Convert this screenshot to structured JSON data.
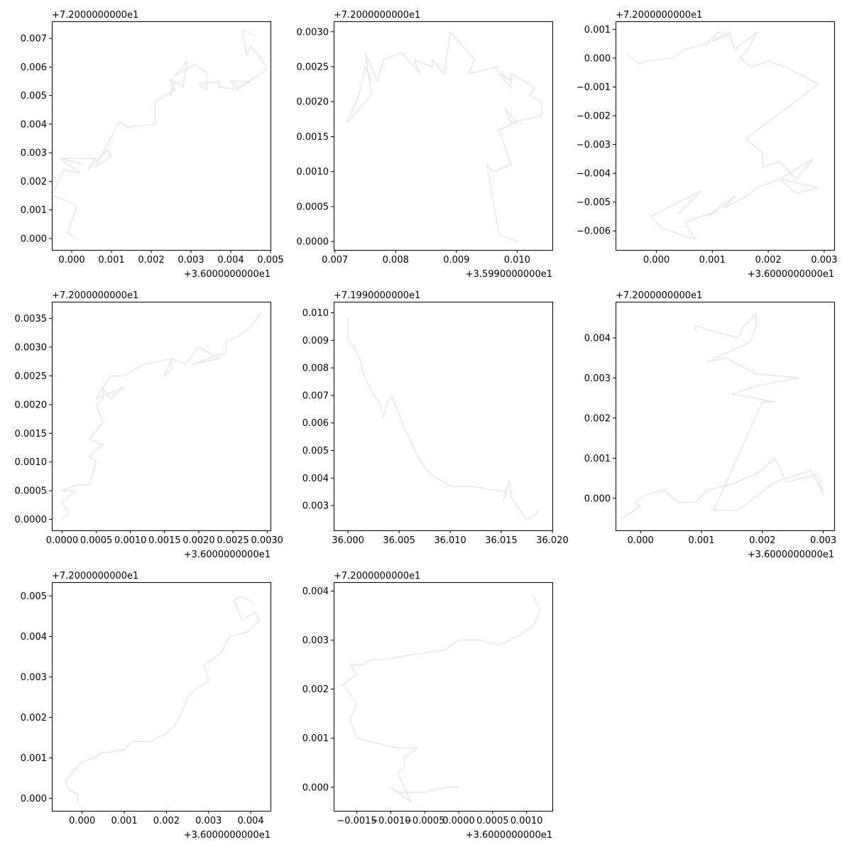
{
  "colors": {
    "track": "#e6e6fa",
    "axis": "#000000",
    "background": "#ffffff"
  },
  "chart_data": [
    {
      "type": "line",
      "title": "",
      "xlabel": "",
      "ylabel": "",
      "xlim": [
        -0.0005,
        0.005
      ],
      "ylim": [
        -0.0004,
        0.0076
      ],
      "x_offset_label": "+3.6000000000e1",
      "y_offset_label": "+7.2000000000e1",
      "x_ticks": [
        0.0,
        0.001,
        0.002,
        0.003,
        0.004,
        0.005
      ],
      "x_tick_labels": [
        "0.000",
        "0.001",
        "0.002",
        "0.003",
        "0.004",
        "0.005"
      ],
      "y_ticks": [
        0.0,
        0.001,
        0.002,
        0.003,
        0.004,
        0.005,
        0.006,
        0.007
      ],
      "y_tick_labels": [
        "0.000",
        "0.001",
        "0.002",
        "0.003",
        "0.004",
        "0.005",
        "0.006",
        "0.007"
      ],
      "series": [
        {
          "x": [
            0.0001,
            -0.0001,
            0.0001,
            0.0001,
            -0.0005,
            -0.0003,
            -0.0002,
            0.0002,
            -0.0003,
            0.0003,
            -0.0003,
            0.0006,
            0.0004,
            0.0009,
            0.001,
            0.0006,
            0.0012,
            0.0014,
            0.0021,
            0.0021,
            0.0026,
            0.0025,
            0.0025,
            0.0026,
            0.0028,
            0.0029,
            0.0026,
            0.0031,
            0.0034,
            0.0034,
            0.0032,
            0.0037,
            0.0037,
            0.0042,
            0.004,
            0.0045,
            0.0041,
            0.0048,
            0.0049,
            0.0047,
            0.0045,
            0.0044,
            0.0043,
            0.0046
          ],
          "y": [
            0.0,
            0.0002,
            0.001,
            0.0012,
            0.0015,
            0.0021,
            0.0024,
            0.0023,
            0.0028,
            0.0026,
            0.0028,
            0.0028,
            0.0024,
            0.0031,
            0.0029,
            0.0025,
            0.0041,
            0.0039,
            0.004,
            0.0048,
            0.0052,
            0.0056,
            0.005,
            0.0055,
            0.0053,
            0.0062,
            0.0057,
            0.0061,
            0.0058,
            0.0052,
            0.0054,
            0.0055,
            0.0053,
            0.0052,
            0.0055,
            0.0055,
            0.0052,
            0.0058,
            0.006,
            0.0064,
            0.0067,
            0.0064,
            0.0073,
            0.0071
          ]
        }
      ]
    },
    {
      "type": "line",
      "title": "",
      "xlabel": "",
      "ylabel": "",
      "xlim": [
        0.00698,
        0.01058
      ],
      "ylim": [
        -0.00012,
        0.00315
      ],
      "x_offset_label": "+3.5990000000e1",
      "y_offset_label": "+7.2000000000e1",
      "x_ticks": [
        0.007,
        0.008,
        0.009,
        0.01
      ],
      "x_tick_labels": [
        "0.007",
        "0.008",
        "0.009",
        "0.010"
      ],
      "y_ticks": [
        0.0,
        0.0005,
        0.001,
        0.0015,
        0.002,
        0.0025,
        0.003
      ],
      "y_tick_labels": [
        "0.0000",
        "0.0005",
        "0.0010",
        "0.0015",
        "0.0020",
        "0.0025",
        "0.0030"
      ],
      "series": [
        {
          "x": [
            0.01,
            0.0097,
            0.0095,
            0.0096,
            0.0099,
            0.0097,
            0.01,
            0.0098,
            0.0099,
            0.0104,
            0.0104,
            0.0102,
            0.0103,
            0.0101,
            0.0099,
            0.0099,
            0.0097,
            0.0099,
            0.0096,
            0.0097,
            0.0092,
            0.0093,
            0.0089,
            0.0088,
            0.0086,
            0.0086,
            0.0083,
            0.0084,
            0.0081,
            0.0078,
            0.0077,
            0.0075,
            0.0076,
            0.0074,
            0.0072,
            0.0074,
            0.0075,
            0.0076
          ],
          "y": [
            0.0,
            0.0001,
            0.0011,
            0.001,
            0.0011,
            0.0016,
            0.0017,
            0.0019,
            0.0017,
            0.0018,
            0.002,
            0.0021,
            0.0022,
            0.0023,
            0.0024,
            0.0022,
            0.0024,
            0.0023,
            0.0025,
            0.0025,
            0.0024,
            0.0026,
            0.003,
            0.0024,
            0.0026,
            0.0025,
            0.0026,
            0.0024,
            0.0027,
            0.0026,
            0.0023,
            0.0027,
            0.0021,
            0.0019,
            0.0017,
            0.0021,
            0.0025,
            0.0023
          ]
        }
      ]
    },
    {
      "type": "line",
      "title": "",
      "xlabel": "",
      "ylabel": "",
      "xlim": [
        -0.00073,
        0.00318
      ],
      "ylim": [
        -0.00666,
        0.00128
      ],
      "x_offset_label": "+3.6000000000e1",
      "y_offset_label": "+7.2000000000e1",
      "x_ticks": [
        0.0,
        0.001,
        0.002,
        0.003
      ],
      "x_tick_labels": [
        "0.000",
        "0.001",
        "0.002",
        "0.003"
      ],
      "y_ticks": [
        -0.006,
        -0.005,
        -0.004,
        -0.003,
        -0.002,
        -0.001,
        0.0,
        0.001
      ],
      "y_tick_labels": [
        "−0.006",
        "−0.005",
        "−0.004",
        "−0.003",
        "−0.002",
        "−0.001",
        "0.000",
        "0.001"
      ],
      "series": [
        {
          "x": [
            -0.0005,
            -0.0003,
            -0.0002,
            0.0003,
            0.0005,
            0.0009,
            0.0011,
            0.0013,
            0.001,
            0.0013,
            0.0014,
            0.0018,
            0.0016,
            0.0015,
            0.0017,
            0.002,
            0.0023,
            0.0029,
            0.0016,
            0.0019,
            0.0019,
            0.0022,
            0.0025,
            0.0028,
            0.0022,
            0.0029,
            0.0025,
            0.0022,
            0.0018,
            0.0016,
            0.0012,
            0.0014,
            0.0009,
            0.0011,
            0.0005,
            0.0007,
            0.0001,
            -0.0001,
            0.0003,
            0.0008,
            0.0004
          ],
          "y": [
            0.0001,
            -0.0002,
            -0.0001,
            0.0,
            0.0003,
            0.0005,
            0.0009,
            0.0008,
            0.0006,
            0.0009,
            0.0003,
            0.0009,
            0.0002,
            0.0,
            -0.0003,
            -0.0001,
            -0.0003,
            -0.0009,
            -0.0028,
            -0.0033,
            -0.0038,
            -0.0036,
            -0.0042,
            -0.0035,
            -0.0042,
            -0.0045,
            -0.0047,
            -0.0042,
            -0.0045,
            -0.0048,
            -0.0052,
            -0.0048,
            -0.0055,
            -0.0053,
            -0.0057,
            -0.0063,
            -0.0059,
            -0.0055,
            -0.0051,
            -0.0046,
            -0.0054
          ]
        }
      ]
    },
    {
      "type": "line",
      "title": "",
      "xlabel": "",
      "ylabel": "",
      "xlim": [
        -0.00015,
        0.00305
      ],
      "ylim": [
        -0.00019,
        0.00379
      ],
      "x_offset_label": "+3.6000000000e1",
      "y_offset_label": "+7.2000000000e1",
      "x_ticks": [
        0.0,
        0.0005,
        0.001,
        0.0015,
        0.002,
        0.0025,
        0.003
      ],
      "x_tick_labels": [
        "0.0000",
        "0.0005",
        "0.0010",
        "0.0015",
        "0.0020",
        "0.0025",
        "0.0030"
      ],
      "y_ticks": [
        0.0,
        0.0005,
        0.001,
        0.0015,
        0.002,
        0.0025,
        0.003,
        0.0035
      ],
      "y_tick_labels": [
        "0.0000",
        "0.0005",
        "0.0010",
        "0.0015",
        "0.0020",
        "0.0025",
        "0.0030",
        "0.0035"
      ],
      "series": [
        {
          "x": [
            0.0,
            0.0001,
            0.0,
            0.0002,
            0.0,
            0.0002,
            0.0004,
            0.0005,
            0.0004,
            0.0006,
            0.0004,
            0.0006,
            0.0005,
            0.0006,
            0.0006,
            0.0007,
            0.0009,
            0.0005,
            0.0007,
            0.0009,
            0.0012,
            0.0016,
            0.0015,
            0.0016,
            0.0016,
            0.0018,
            0.002,
            0.0023,
            0.0019,
            0.0024,
            0.0024,
            0.0026,
            0.0028,
            0.0029
          ],
          "y": [
            0.0,
            0.0001,
            0.0003,
            0.0005,
            0.0005,
            0.0006,
            0.0006,
            0.001,
            0.0011,
            0.0013,
            0.0014,
            0.0017,
            0.002,
            0.0021,
            0.0023,
            0.0021,
            0.0023,
            0.0021,
            0.0025,
            0.0025,
            0.0027,
            0.0028,
            0.0025,
            0.0026,
            0.0028,
            0.0027,
            0.003,
            0.0028,
            0.0027,
            0.0029,
            0.0031,
            0.0032,
            0.0034,
            0.0036
          ]
        }
      ]
    },
    {
      "type": "line",
      "title": "",
      "xlabel": "",
      "ylabel": "",
      "xlim": [
        35.9986,
        36.02
      ],
      "ylim": [
        0.0021,
        0.0104
      ],
      "x_offset_label": "",
      "y_offset_label": "+7.1990000000e1",
      "x_ticks": [
        36.0,
        36.005,
        36.01,
        36.015,
        36.02
      ],
      "x_tick_labels": [
        "36.000",
        "36.005",
        "36.010",
        "36.015",
        "36.020"
      ],
      "y_ticks": [
        0.003,
        0.004,
        0.005,
        0.006,
        0.007,
        0.008,
        0.009,
        0.01
      ],
      "y_tick_labels": [
        "0.003",
        "0.004",
        "0.005",
        "0.006",
        "0.007",
        "0.008",
        "0.009",
        "0.010"
      ],
      "series": [
        {
          "x": [
            36.0,
            36.0,
            36.0005,
            36.0012,
            36.0015,
            36.0025,
            36.003,
            36.0035,
            36.0038,
            36.0043,
            36.0045,
            36.0055,
            36.006,
            36.0065,
            36.0075,
            36.0082,
            36.0092,
            36.01,
            36.012,
            36.0155,
            36.0152,
            36.0158,
            36.016,
            36.0165,
            36.0175,
            36.0185,
            36.0185
          ],
          "y": [
            0.0098,
            0.009,
            0.0088,
            0.0083,
            0.0078,
            0.007,
            0.0068,
            0.0062,
            0.0067,
            0.007,
            0.0068,
            0.0058,
            0.0055,
            0.005,
            0.0044,
            0.0041,
            0.0039,
            0.0037,
            0.0037,
            0.0035,
            0.0032,
            0.0039,
            0.0033,
            0.003,
            0.0025,
            0.0027,
            0.0028
          ]
        }
      ]
    },
    {
      "type": "line",
      "title": "",
      "xlabel": "",
      "ylabel": "",
      "xlim": [
        -0.00041,
        0.00318
      ],
      "ylim": [
        -0.0008,
        0.0049
      ],
      "x_offset_label": "+3.6000000000e1",
      "y_offset_label": "+7.2000000000e1",
      "x_ticks": [
        0.0,
        0.001,
        0.002,
        0.003
      ],
      "x_tick_labels": [
        "0.000",
        "0.001",
        "0.002",
        "0.003"
      ],
      "y_ticks": [
        0.0,
        0.001,
        0.002,
        0.003,
        0.004
      ],
      "y_tick_labels": [
        "0.000",
        "0.001",
        "0.002",
        "0.003",
        "0.004"
      ],
      "series": [
        {
          "x": [
            -0.0002,
            -0.0003,
            0.0,
            -0.0001,
            0.0001,
            0.0004,
            0.0006,
            0.0009,
            0.0011,
            0.0016,
            0.0014,
            0.0019,
            0.0022,
            0.0024,
            0.0029,
            0.003,
            0.0028,
            0.0022,
            0.0016,
            0.0012,
            0.002,
            0.0022,
            0.0015,
            0.0019,
            0.0026,
            0.0019,
            0.0014,
            0.0011,
            0.0018,
            0.0019,
            0.0019,
            0.0017,
            0.0016,
            0.0011,
            0.0009,
            0.0009
          ],
          "y": [
            -0.0004,
            -0.0005,
            -0.0002,
            -0.0001,
            0.0001,
            0.0002,
            -0.0001,
            -0.0001,
            0.0002,
            0.0004,
            0.0003,
            0.0006,
            0.001,
            0.0004,
            0.0006,
            0.0001,
            0.0007,
            0.0004,
            -0.0003,
            -0.0003,
            0.0024,
            0.0024,
            0.0026,
            0.0028,
            0.003,
            0.0031,
            0.0035,
            0.0034,
            0.0039,
            0.0043,
            0.0046,
            0.0043,
            0.004,
            0.0042,
            0.0043,
            0.0042
          ]
        }
      ]
    },
    {
      "type": "line",
      "title": "",
      "xlabel": "",
      "ylabel": "",
      "xlim": [
        -0.00072,
        0.00447
      ],
      "ylim": [
        -0.00031,
        0.00534
      ],
      "x_offset_label": "+3.6000000000e1",
      "y_offset_label": "+7.2000000000e1",
      "x_ticks": [
        0.0,
        0.001,
        0.002,
        0.003,
        0.004
      ],
      "x_tick_labels": [
        "0.000",
        "0.001",
        "0.002",
        "0.003",
        "0.004"
      ],
      "y_ticks": [
        0.0,
        0.001,
        0.002,
        0.003,
        0.004,
        0.005
      ],
      "y_tick_labels": [
        "0.000",
        "0.001",
        "0.002",
        "0.003",
        "0.004",
        "0.005"
      ],
      "series": [
        {
          "x": [
            -0.0001,
            -0.0001,
            -0.0003,
            -0.0004,
            -0.0002,
            0.0,
            0.0003,
            0.0004,
            0.001,
            0.0012,
            0.0016,
            0.0018,
            0.002,
            0.0022,
            0.0024,
            0.0025,
            0.0027,
            0.003,
            0.0029,
            0.0033,
            0.0035,
            0.0039,
            0.0042,
            0.0041,
            0.0038,
            0.0036,
            0.0038,
            0.0041
          ],
          "y": [
            -0.0001,
            0.0001,
            0.0002,
            0.0004,
            0.0007,
            0.0009,
            0.001,
            0.0011,
            0.0012,
            0.0014,
            0.0014,
            0.0015,
            0.0016,
            0.0018,
            0.0022,
            0.0025,
            0.0027,
            0.0029,
            0.0033,
            0.0036,
            0.004,
            0.0041,
            0.0044,
            0.0046,
            0.0044,
            0.0049,
            0.005,
            0.0048
          ]
        }
      ]
    },
    {
      "type": "line",
      "title": "",
      "xlabel": "",
      "ylabel": "",
      "xlim": [
        -0.00184,
        0.00138
      ],
      "ylim": [
        -0.00048,
        0.00418
      ],
      "x_offset_label": "+3.6000000000e1",
      "y_offset_label": "+7.2000000000e1",
      "x_ticks": [
        -0.0015,
        -0.001,
        -0.0005,
        0.0,
        0.0005,
        0.001
      ],
      "x_tick_labels": [
        "−0.0015",
        "−0.0010",
        "−0.0005",
        "0.0000",
        "0.0005",
        "0.0010"
      ],
      "y_ticks": [
        0.0,
        0.001,
        0.002,
        0.003,
        0.004
      ],
      "y_tick_labels": [
        "0.000",
        "0.001",
        "0.002",
        "0.003",
        "0.004"
      ],
      "series": [
        {
          "x": [
            0.0,
            -0.0002,
            -0.0005,
            -0.0009,
            -0.001,
            -0.0007,
            -0.0009,
            -0.0008,
            -0.0008,
            -0.0006,
            -0.0009,
            -0.0015,
            -0.0016,
            -0.0015,
            -0.0017,
            -0.0015,
            -0.0016,
            -0.0014,
            -0.0013,
            -0.0011,
            -0.0007,
            -0.0002,
            0.0,
            0.0003,
            0.0006,
            0.0009,
            0.0011,
            0.0012,
            0.0011
          ],
          "y": [
            0.0,
            0.0,
            -0.0001,
            -0.0001,
            0.0,
            -0.0003,
            0.0003,
            0.0004,
            0.0006,
            0.0008,
            0.0008,
            0.001,
            0.0014,
            0.0017,
            0.0021,
            0.0023,
            0.0025,
            0.0025,
            0.0026,
            0.0026,
            0.0027,
            0.0028,
            0.003,
            0.003,
            0.0029,
            0.0031,
            0.0033,
            0.0036,
            0.0039
          ]
        }
      ]
    }
  ]
}
